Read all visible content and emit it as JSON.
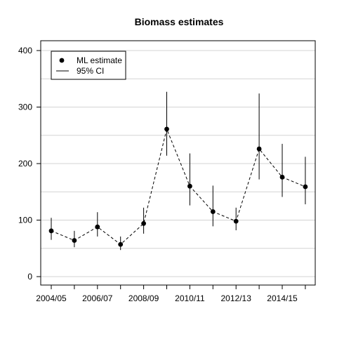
{
  "chart_data": {
    "type": "scatter",
    "title": "Biomass estimates",
    "xlabel": "",
    "ylabel": "",
    "ylim": [
      0,
      400
    ],
    "y_ticks": [
      0,
      100,
      200,
      300,
      400
    ],
    "grid": true,
    "legend_position": "top-left",
    "x_tick_labels": [
      "2004/05",
      "2006/07",
      "2008/09",
      "2010/11",
      "2012/13",
      "2014/15"
    ],
    "categories": [
      "2004/05",
      "2005/06",
      "2006/07",
      "2007/08",
      "2008/09",
      "2009/10",
      "2010/11",
      "2011/12",
      "2012/13",
      "2013/14",
      "2014/15",
      "2015/16"
    ],
    "series": [
      {
        "name": "ML estimate",
        "values": [
          81,
          64,
          88,
          57,
          94,
          261,
          160,
          115,
          98,
          226,
          176,
          159
        ]
      },
      {
        "name": "95% CI",
        "lower": [
          65,
          52,
          71,
          47,
          76,
          214,
          126,
          89,
          82,
          172,
          141,
          128
        ],
        "upper": [
          104,
          81,
          114,
          71,
          122,
          327,
          218,
          161,
          122,
          324,
          235,
          212
        ]
      }
    ],
    "colors": {
      "points": "#000000",
      "ci": "#000000",
      "grid": "#d3d3d3"
    }
  }
}
